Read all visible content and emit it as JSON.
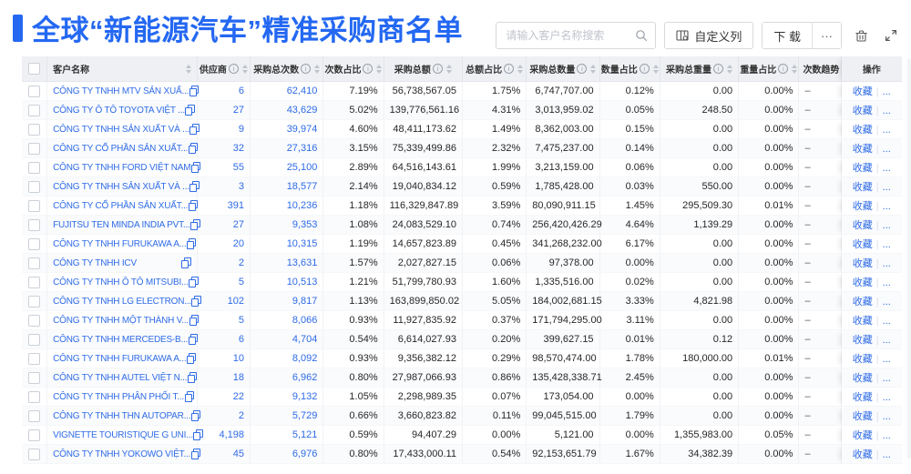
{
  "page": {
    "title": "全球“新能源汽车”精准采购商名单"
  },
  "colors": {
    "accent": "#2468F2",
    "link": "#2E6BE6",
    "header_bg": "#EEF0F4",
    "stripe": "#FAFBFD",
    "text": "#262626"
  },
  "toolbar": {
    "search_placeholder": "请输入客户名称搜索",
    "customize_columns_label": "自定义列",
    "download_label": "下 载",
    "more_label": "···",
    "icons": {
      "search": "magnifier",
      "customize": "column-settings",
      "delete": "trash",
      "fullscreen": "expand"
    }
  },
  "table": {
    "row_actions": {
      "favorite": "收藏",
      "separator": "|",
      "more": "..."
    },
    "columns": [
      {
        "key": "select",
        "type": "checkbox",
        "label": "",
        "width": 28,
        "align": "center",
        "sortable": false,
        "info": false
      },
      {
        "key": "name",
        "type": "name",
        "label": "客户名称",
        "width": 164,
        "align": "left",
        "sortable": true,
        "info": false,
        "fixedShadow": "shadow-right"
      },
      {
        "key": "supplier",
        "type": "link",
        "label": "供应商",
        "width": 58,
        "align": "right",
        "sortable": true,
        "info": true
      },
      {
        "key": "purchase_count",
        "type": "link",
        "label": "采购总次数",
        "width": 80,
        "align": "right",
        "sortable": true,
        "info": true
      },
      {
        "key": "count_pct",
        "type": "text",
        "label": "次数占比",
        "width": 66,
        "align": "right",
        "sortable": true,
        "info": true
      },
      {
        "key": "total_amount",
        "type": "text",
        "label": "采购总额",
        "width": 86,
        "align": "right",
        "sortable": true,
        "info": true
      },
      {
        "key": "amount_pct",
        "type": "text",
        "label": "总额占比",
        "width": 70,
        "align": "right",
        "sortable": true,
        "info": true
      },
      {
        "key": "total_qty",
        "type": "text",
        "label": "采购总数量",
        "width": 80,
        "align": "right",
        "sortable": true,
        "info": true
      },
      {
        "key": "qty_pct",
        "type": "text",
        "label": "数量占比",
        "width": 66,
        "align": "right",
        "sortable": true,
        "info": true
      },
      {
        "key": "total_weight",
        "type": "text",
        "label": "采购总重量",
        "width": 86,
        "align": "right",
        "sortable": true,
        "info": true
      },
      {
        "key": "weight_pct",
        "type": "text",
        "label": "重量占比",
        "width": 66,
        "align": "right",
        "sortable": true,
        "info": true
      },
      {
        "key": "trend",
        "type": "text",
        "label": "次数趋势",
        "width": 46,
        "align": "left",
        "sortable": false,
        "info": false
      },
      {
        "key": "actions",
        "type": "actions",
        "label": "操作",
        "width": 66,
        "align": "center",
        "sortable": false,
        "info": false,
        "fixedShadow": "shadow-left"
      }
    ],
    "rows": [
      {
        "name": "CÔNG TY TNHH MTV SẢN XUẤ...",
        "supplier": "6",
        "purchase_count": "62,410",
        "count_pct": "7.19%",
        "total_amount": "56,738,567.05",
        "amount_pct": "1.75%",
        "total_qty": "6,747,707.00",
        "qty_pct": "0.12%",
        "total_weight": "0.00",
        "weight_pct": "0.00%",
        "trend": "–"
      },
      {
        "name": "CÔNG TY Ô TÔ TOYOTA VIỆT ...",
        "supplier": "27",
        "purchase_count": "43,629",
        "count_pct": "5.02%",
        "total_amount": "139,776,561.16",
        "amount_pct": "4.31%",
        "total_qty": "3,013,959.02",
        "qty_pct": "0.05%",
        "total_weight": "248.50",
        "weight_pct": "0.00%",
        "trend": "–"
      },
      {
        "name": "CÔNG TY TNHH SẢN XUẤT VÀ ...",
        "supplier": "9",
        "purchase_count": "39,974",
        "count_pct": "4.60%",
        "total_amount": "48,411,173.62",
        "amount_pct": "1.49%",
        "total_qty": "8,362,003.00",
        "qty_pct": "0.15%",
        "total_weight": "0.00",
        "weight_pct": "0.00%",
        "trend": "–"
      },
      {
        "name": "CÔNG TY CỔ PHẦN SẢN XUẤT...",
        "supplier": "32",
        "purchase_count": "27,316",
        "count_pct": "3.15%",
        "total_amount": "75,339,499.86",
        "amount_pct": "2.32%",
        "total_qty": "7,475,237.00",
        "qty_pct": "0.14%",
        "total_weight": "0.00",
        "weight_pct": "0.00%",
        "trend": "–"
      },
      {
        "name": "CÔNG TY TNHH FORD VIỆT NAM",
        "supplier": "55",
        "purchase_count": "25,100",
        "count_pct": "2.89%",
        "total_amount": "64,516,143.61",
        "amount_pct": "1.99%",
        "total_qty": "3,213,159.00",
        "qty_pct": "0.06%",
        "total_weight": "0.00",
        "weight_pct": "0.00%",
        "trend": "–"
      },
      {
        "name": "CÔNG TY TNHH SẢN XUẤT VÀ ...",
        "supplier": "3",
        "purchase_count": "18,577",
        "count_pct": "2.14%",
        "total_amount": "19,040,834.12",
        "amount_pct": "0.59%",
        "total_qty": "1,785,428.00",
        "qty_pct": "0.03%",
        "total_weight": "550.00",
        "weight_pct": "0.00%",
        "trend": "–"
      },
      {
        "name": "CÔNG TY CỔ PHẦN SẢN XUẤT...",
        "supplier": "391",
        "purchase_count": "10,236",
        "count_pct": "1.18%",
        "total_amount": "116,329,847.89",
        "amount_pct": "3.59%",
        "total_qty": "80,090,911.15",
        "qty_pct": "1.45%",
        "total_weight": "295,509.30",
        "weight_pct": "0.01%",
        "trend": "–"
      },
      {
        "name": "FUJITSU TEN MINDA INDIA PVT...",
        "supplier": "27",
        "purchase_count": "9,353",
        "count_pct": "1.08%",
        "total_amount": "24,083,529.10",
        "amount_pct": "0.74%",
        "total_qty": "256,420,426.29",
        "qty_pct": "4.64%",
        "total_weight": "1,139.29",
        "weight_pct": "0.00%",
        "trend": "–"
      },
      {
        "name": "CÔNG TY TNHH FURUKAWA A...",
        "supplier": "20",
        "purchase_count": "10,315",
        "count_pct": "1.19%",
        "total_amount": "14,657,823.89",
        "amount_pct": "0.45%",
        "total_qty": "341,268,232.00",
        "qty_pct": "6.17%",
        "total_weight": "0.00",
        "weight_pct": "0.00%",
        "trend": "–"
      },
      {
        "name": "CÔNG TY TNHH ICV",
        "supplier": "2",
        "purchase_count": "13,631",
        "count_pct": "1.57%",
        "total_amount": "2,027,827.15",
        "amount_pct": "0.06%",
        "total_qty": "97,378.00",
        "qty_pct": "0.00%",
        "total_weight": "0.00",
        "weight_pct": "0.00%",
        "trend": "–"
      },
      {
        "name": "CÔNG TY TNHH Ô TÔ MITSUBI...",
        "supplier": "5",
        "purchase_count": "10,513",
        "count_pct": "1.21%",
        "total_amount": "51,799,780.93",
        "amount_pct": "1.60%",
        "total_qty": "1,335,516.00",
        "qty_pct": "0.02%",
        "total_weight": "0.00",
        "weight_pct": "0.00%",
        "trend": "–"
      },
      {
        "name": "CÔNG TY TNHH LG ELECTRON...",
        "supplier": "102",
        "purchase_count": "9,817",
        "count_pct": "1.13%",
        "total_amount": "163,899,850.02",
        "amount_pct": "5.05%",
        "total_qty": "184,002,681.15",
        "qty_pct": "3.33%",
        "total_weight": "4,821.98",
        "weight_pct": "0.00%",
        "trend": "–"
      },
      {
        "name": "CÔNG TY TNHH MỘT THÀNH V...",
        "supplier": "5",
        "purchase_count": "8,066",
        "count_pct": "0.93%",
        "total_amount": "11,927,835.92",
        "amount_pct": "0.37%",
        "total_qty": "171,794,295.00",
        "qty_pct": "3.11%",
        "total_weight": "0.00",
        "weight_pct": "0.00%",
        "trend": "–"
      },
      {
        "name": "CÔNG TY TNHH MERCEDES-B...",
        "supplier": "6",
        "purchase_count": "4,704",
        "count_pct": "0.54%",
        "total_amount": "6,614,027.93",
        "amount_pct": "0.20%",
        "total_qty": "399,627.15",
        "qty_pct": "0.01%",
        "total_weight": "0.12",
        "weight_pct": "0.00%",
        "trend": "–"
      },
      {
        "name": "CÔNG TY TNHH FURUKAWA A...",
        "supplier": "10",
        "purchase_count": "8,092",
        "count_pct": "0.93%",
        "total_amount": "9,356,382.12",
        "amount_pct": "0.29%",
        "total_qty": "98,570,474.00",
        "qty_pct": "1.78%",
        "total_weight": "180,000.00",
        "weight_pct": "0.01%",
        "trend": "–"
      },
      {
        "name": "CÔNG TY TNHH AUTEL VIỆT N...",
        "supplier": "18",
        "purchase_count": "6,962",
        "count_pct": "0.80%",
        "total_amount": "27,987,066.93",
        "amount_pct": "0.86%",
        "total_qty": "135,428,338.71",
        "qty_pct": "2.45%",
        "total_weight": "0.00",
        "weight_pct": "0.00%",
        "trend": "–"
      },
      {
        "name": "CÔNG TY TNHH PHÂN PHỐI T...",
        "supplier": "22",
        "purchase_count": "9,132",
        "count_pct": "1.05%",
        "total_amount": "2,298,989.35",
        "amount_pct": "0.07%",
        "total_qty": "173,054.00",
        "qty_pct": "0.00%",
        "total_weight": "0.00",
        "weight_pct": "0.00%",
        "trend": "–"
      },
      {
        "name": "CÔNG TY TNHH THN AUTOPAR...",
        "supplier": "2",
        "purchase_count": "5,729",
        "count_pct": "0.66%",
        "total_amount": "3,660,823.82",
        "amount_pct": "0.11%",
        "total_qty": "99,045,515.00",
        "qty_pct": "1.79%",
        "total_weight": "0.00",
        "weight_pct": "0.00%",
        "trend": "–"
      },
      {
        "name": "VIGNETTE TOURISTIQUE G UNI...",
        "supplier": "4,198",
        "purchase_count": "5,121",
        "count_pct": "0.59%",
        "total_amount": "94,407.29",
        "amount_pct": "0.00%",
        "total_qty": "5,121.00",
        "qty_pct": "0.00%",
        "total_weight": "1,355,983.00",
        "weight_pct": "0.05%",
        "trend": "–"
      },
      {
        "name": "CÔNG TY TNHH YOKOWO VIỆT...",
        "supplier": "45",
        "purchase_count": "6,976",
        "count_pct": "0.80%",
        "total_amount": "17,433,000.11",
        "amount_pct": "0.54%",
        "total_qty": "92,153,651.79",
        "qty_pct": "1.67%",
        "total_weight": "34,382.39",
        "weight_pct": "0.00%",
        "trend": "–"
      }
    ]
  }
}
